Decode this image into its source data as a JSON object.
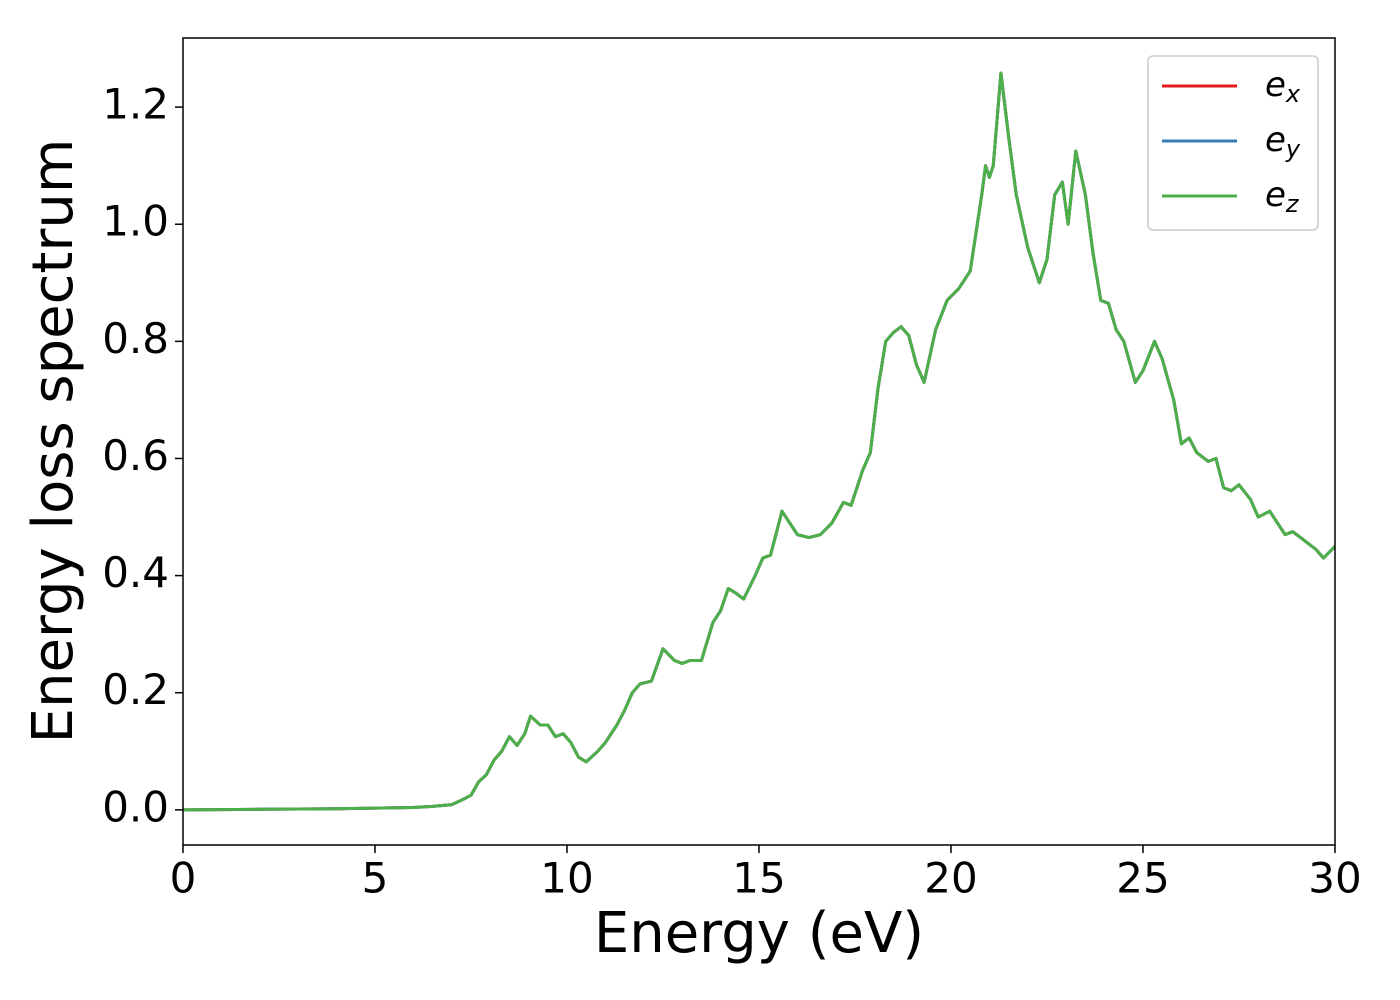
{
  "chart_data": {
    "type": "line",
    "xlabel": "Energy (eV)",
    "ylabel": "Energy loss spectrum",
    "x": [
      0,
      2,
      4,
      5,
      6,
      6.5,
      7.0,
      7.3,
      7.5,
      7.7,
      7.9,
      8.1,
      8.3,
      8.5,
      8.7,
      8.9,
      9.05,
      9.3,
      9.5,
      9.7,
      9.9,
      10.1,
      10.3,
      10.5,
      10.8,
      11.0,
      11.3,
      11.5,
      11.7,
      11.9,
      12.2,
      12.5,
      12.8,
      13.0,
      13.2,
      13.5,
      13.8,
      14.0,
      14.2,
      14.4,
      14.6,
      14.9,
      15.1,
      15.3,
      15.6,
      15.8,
      16.0,
      16.3,
      16.6,
      16.9,
      17.2,
      17.4,
      17.7,
      17.9,
      18.1,
      18.3,
      18.5,
      18.7,
      18.9,
      19.1,
      19.3,
      19.6,
      19.9,
      20.2,
      20.5,
      20.8,
      20.9,
      21.0,
      21.1,
      21.3,
      21.5,
      21.7,
      22.0,
      22.3,
      22.5,
      22.7,
      22.9,
      23.05,
      23.25,
      23.5,
      23.7,
      23.9,
      24.1,
      24.3,
      24.5,
      24.8,
      25.0,
      25.3,
      25.5,
      25.8,
      26.0,
      26.2,
      26.4,
      26.7,
      26.9,
      27.1,
      27.3,
      27.5,
      27.8,
      28.0,
      28.3,
      28.5,
      28.7,
      28.9,
      29.2,
      29.5,
      29.7,
      30.0
    ],
    "series": [
      {
        "name": "ex",
        "color": "#e41a1c",
        "values": [
          0,
          0.001,
          0.002,
          0.003,
          0.004,
          0.006,
          0.009,
          0.018,
          0.025,
          0.048,
          0.06,
          0.085,
          0.1,
          0.125,
          0.11,
          0.13,
          0.16,
          0.145,
          0.145,
          0.125,
          0.13,
          0.115,
          0.09,
          0.082,
          0.1,
          0.115,
          0.145,
          0.17,
          0.2,
          0.215,
          0.22,
          0.275,
          0.255,
          0.25,
          0.255,
          0.255,
          0.32,
          0.34,
          0.378,
          0.37,
          0.36,
          0.4,
          0.43,
          0.435,
          0.51,
          0.49,
          0.47,
          0.465,
          0.47,
          0.49,
          0.525,
          0.52,
          0.58,
          0.61,
          0.72,
          0.8,
          0.815,
          0.825,
          0.81,
          0.76,
          0.73,
          0.82,
          0.87,
          0.89,
          0.92,
          1.05,
          1.1,
          1.08,
          1.1,
          1.258,
          1.15,
          1.05,
          0.96,
          0.9,
          0.94,
          1.05,
          1.072,
          1.0,
          1.125,
          1.05,
          0.95,
          0.87,
          0.865,
          0.82,
          0.8,
          0.73,
          0.75,
          0.8,
          0.77,
          0.7,
          0.625,
          0.635,
          0.61,
          0.595,
          0.6,
          0.55,
          0.545,
          0.555,
          0.53,
          0.5,
          0.51,
          0.49,
          0.47,
          0.475,
          0.46,
          0.445,
          0.43,
          0.45
        ]
      },
      {
        "name": "ey",
        "color": "#377eb8",
        "values": [
          0,
          0.001,
          0.002,
          0.003,
          0.004,
          0.006,
          0.009,
          0.018,
          0.025,
          0.048,
          0.06,
          0.085,
          0.1,
          0.125,
          0.11,
          0.13,
          0.16,
          0.145,
          0.145,
          0.125,
          0.13,
          0.115,
          0.09,
          0.082,
          0.1,
          0.115,
          0.145,
          0.17,
          0.2,
          0.215,
          0.22,
          0.275,
          0.255,
          0.25,
          0.255,
          0.255,
          0.32,
          0.34,
          0.378,
          0.37,
          0.36,
          0.4,
          0.43,
          0.435,
          0.51,
          0.49,
          0.47,
          0.465,
          0.47,
          0.49,
          0.525,
          0.52,
          0.58,
          0.61,
          0.72,
          0.8,
          0.815,
          0.825,
          0.81,
          0.76,
          0.73,
          0.82,
          0.87,
          0.89,
          0.92,
          1.05,
          1.1,
          1.08,
          1.1,
          1.258,
          1.15,
          1.05,
          0.96,
          0.9,
          0.94,
          1.05,
          1.072,
          1.0,
          1.125,
          1.05,
          0.95,
          0.87,
          0.865,
          0.82,
          0.8,
          0.73,
          0.75,
          0.8,
          0.77,
          0.7,
          0.625,
          0.635,
          0.61,
          0.595,
          0.6,
          0.55,
          0.545,
          0.555,
          0.53,
          0.5,
          0.51,
          0.49,
          0.47,
          0.475,
          0.46,
          0.445,
          0.43,
          0.45
        ]
      },
      {
        "name": "ez",
        "color": "#4daf4a",
        "values": [
          0,
          0.001,
          0.002,
          0.003,
          0.004,
          0.006,
          0.009,
          0.018,
          0.025,
          0.048,
          0.06,
          0.085,
          0.1,
          0.125,
          0.11,
          0.13,
          0.16,
          0.145,
          0.145,
          0.125,
          0.13,
          0.115,
          0.09,
          0.082,
          0.1,
          0.115,
          0.145,
          0.17,
          0.2,
          0.215,
          0.22,
          0.275,
          0.255,
          0.25,
          0.255,
          0.255,
          0.32,
          0.34,
          0.378,
          0.37,
          0.36,
          0.4,
          0.43,
          0.435,
          0.51,
          0.49,
          0.47,
          0.465,
          0.47,
          0.49,
          0.525,
          0.52,
          0.58,
          0.61,
          0.72,
          0.8,
          0.815,
          0.825,
          0.81,
          0.76,
          0.73,
          0.82,
          0.87,
          0.89,
          0.92,
          1.05,
          1.1,
          1.08,
          1.1,
          1.258,
          1.15,
          1.05,
          0.96,
          0.9,
          0.94,
          1.05,
          1.072,
          1.0,
          1.125,
          1.05,
          0.95,
          0.87,
          0.865,
          0.82,
          0.8,
          0.73,
          0.75,
          0.8,
          0.77,
          0.7,
          0.625,
          0.635,
          0.61,
          0.595,
          0.6,
          0.55,
          0.545,
          0.555,
          0.53,
          0.5,
          0.51,
          0.49,
          0.47,
          0.475,
          0.46,
          0.445,
          0.43,
          0.45
        ]
      }
    ],
    "xlim": [
      0,
      30
    ],
    "xticks": [
      0,
      5,
      10,
      15,
      20,
      25,
      30
    ],
    "ylim": [
      -0.06,
      1.318
    ],
    "yticks": [
      {
        "value": 0,
        "label": "0.0"
      },
      0.2,
      0.4,
      0.6,
      0.8,
      {
        "value": 1,
        "label": "1.0"
      },
      1.2
    ],
    "grid": false,
    "legend": "upper right"
  }
}
